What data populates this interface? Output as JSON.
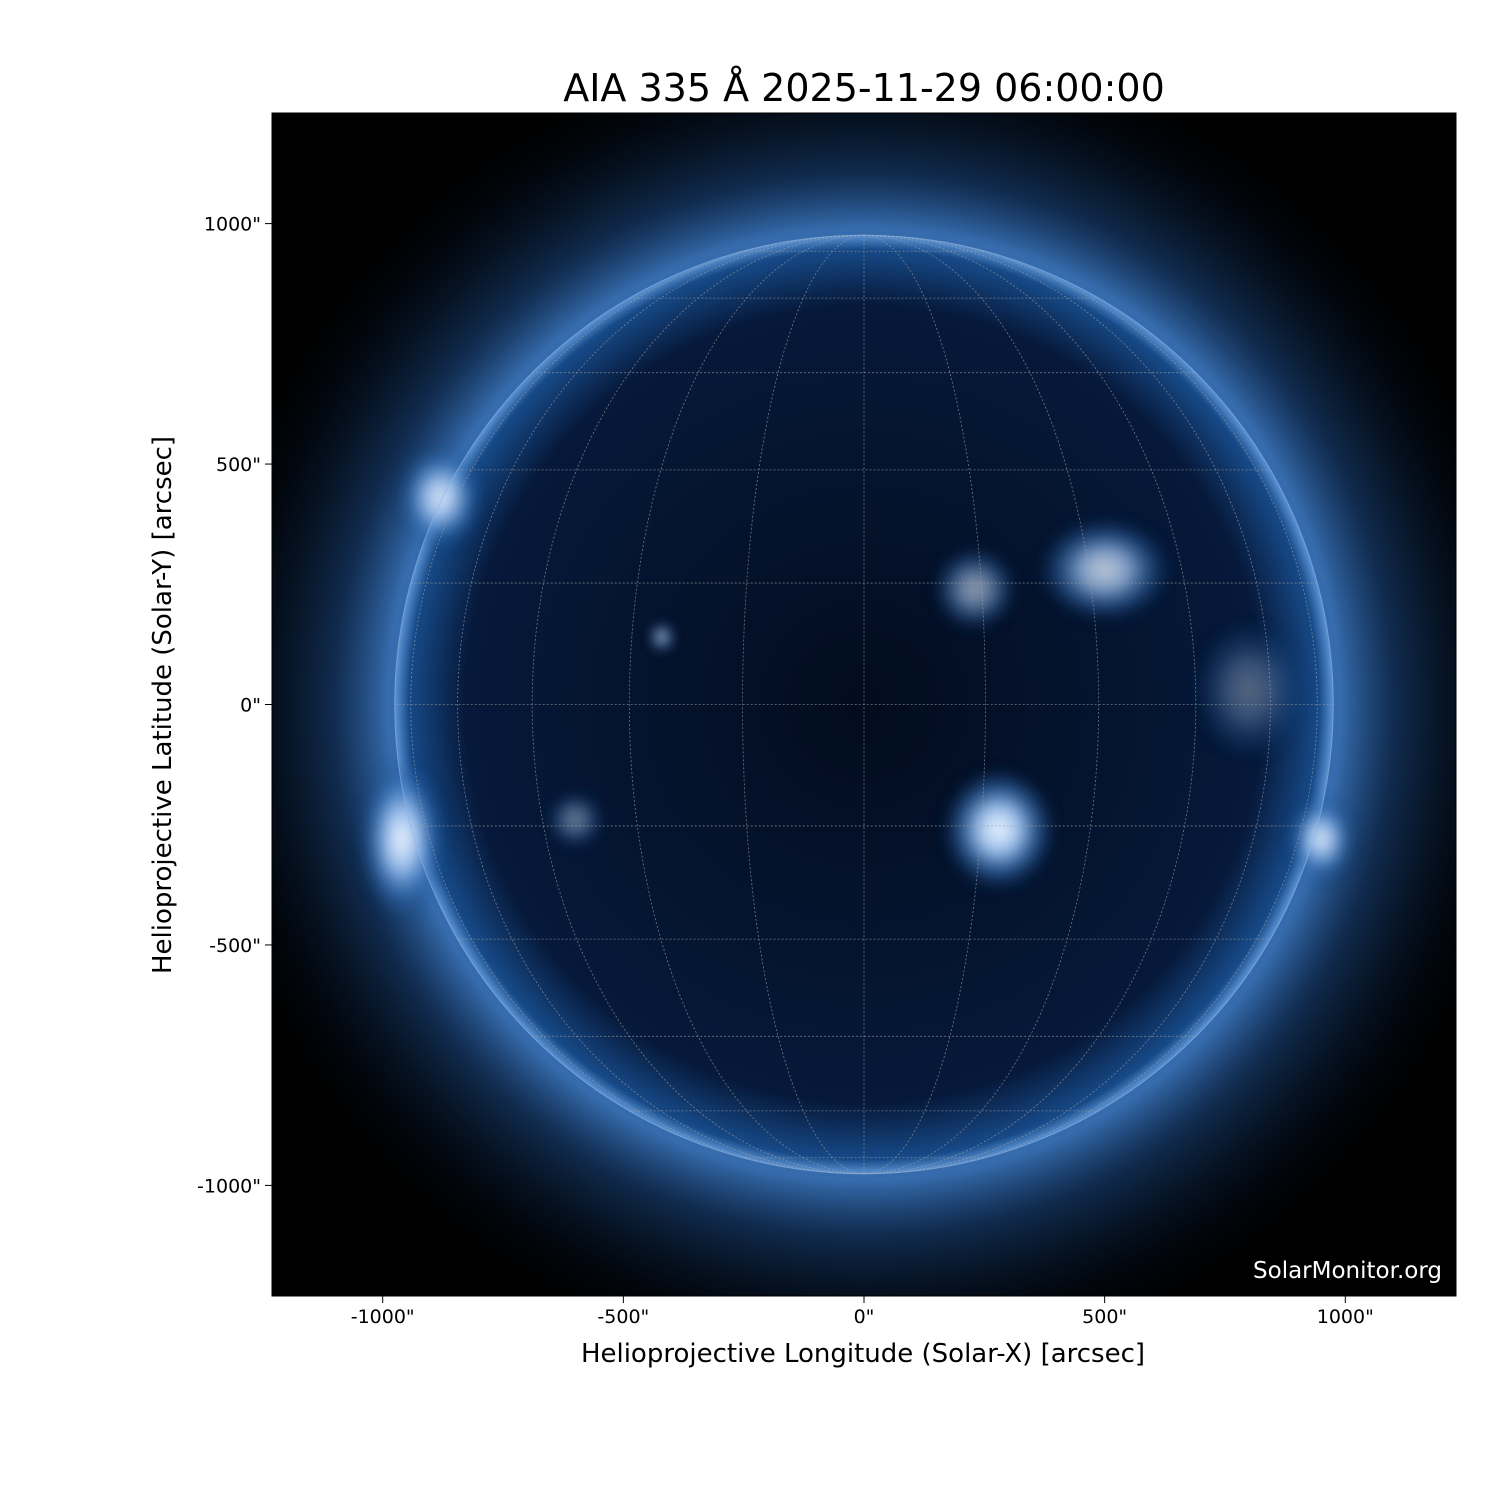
{
  "title": "AIA 335 Å 2025-11-29 06:00:00",
  "watermark": "SolarMonitor.org",
  "chart_data": {
    "type": "image",
    "title": "AIA 335 Å 2025-11-29 06:00:00",
    "xlabel": "Helioprojective Longitude (Solar-X) [arcsec]",
    "ylabel": "Helioprojective Latitude (Solar-Y) [arcsec]",
    "xlim": [
      -1230,
      1230
    ],
    "ylim": [
      -1230,
      1230
    ],
    "xticks": [
      -1000,
      -500,
      0,
      500,
      1000
    ],
    "yticks": [
      -1000,
      -500,
      0,
      500,
      1000
    ],
    "xtick_labels": [
      "-1000\"",
      "-500\"",
      "0\"",
      "500\"",
      "1000\""
    ],
    "ytick_labels": [
      "-1000\"",
      "-500\"",
      "0\"",
      "500\"",
      "1000\""
    ],
    "colormap": "sdoaia335",
    "solar_radius_arcsec": 975,
    "grid": true,
    "grid_spacing_deg": 15,
    "colors": {
      "background": "#000000",
      "disk": "#03122a",
      "bright": "#e8f2ff",
      "mid": "#2a6bb5",
      "grid": "#a0a0a0"
    },
    "bright_regions": [
      {
        "x": 280,
        "y": -260,
        "rx": 120,
        "ry": 130,
        "intensity": 1.0
      },
      {
        "x": 500,
        "y": 280,
        "rx": 140,
        "ry": 110,
        "intensity": 0.8
      },
      {
        "x": 230,
        "y": 240,
        "rx": 90,
        "ry": 90,
        "intensity": 0.6
      },
      {
        "x": -420,
        "y": 140,
        "rx": 25,
        "ry": 30,
        "intensity": 0.8
      },
      {
        "x": -600,
        "y": -240,
        "rx": 60,
        "ry": 60,
        "intensity": 0.45
      },
      {
        "x": -960,
        "y": -280,
        "rx": 90,
        "ry": 170,
        "intensity": 1.0
      },
      {
        "x": -880,
        "y": 430,
        "rx": 90,
        "ry": 110,
        "intensity": 0.9
      },
      {
        "x": 950,
        "y": -280,
        "rx": 70,
        "ry": 90,
        "intensity": 0.9
      },
      {
        "x": 800,
        "y": 30,
        "rx": 120,
        "ry": 150,
        "intensity": 0.35
      }
    ]
  }
}
